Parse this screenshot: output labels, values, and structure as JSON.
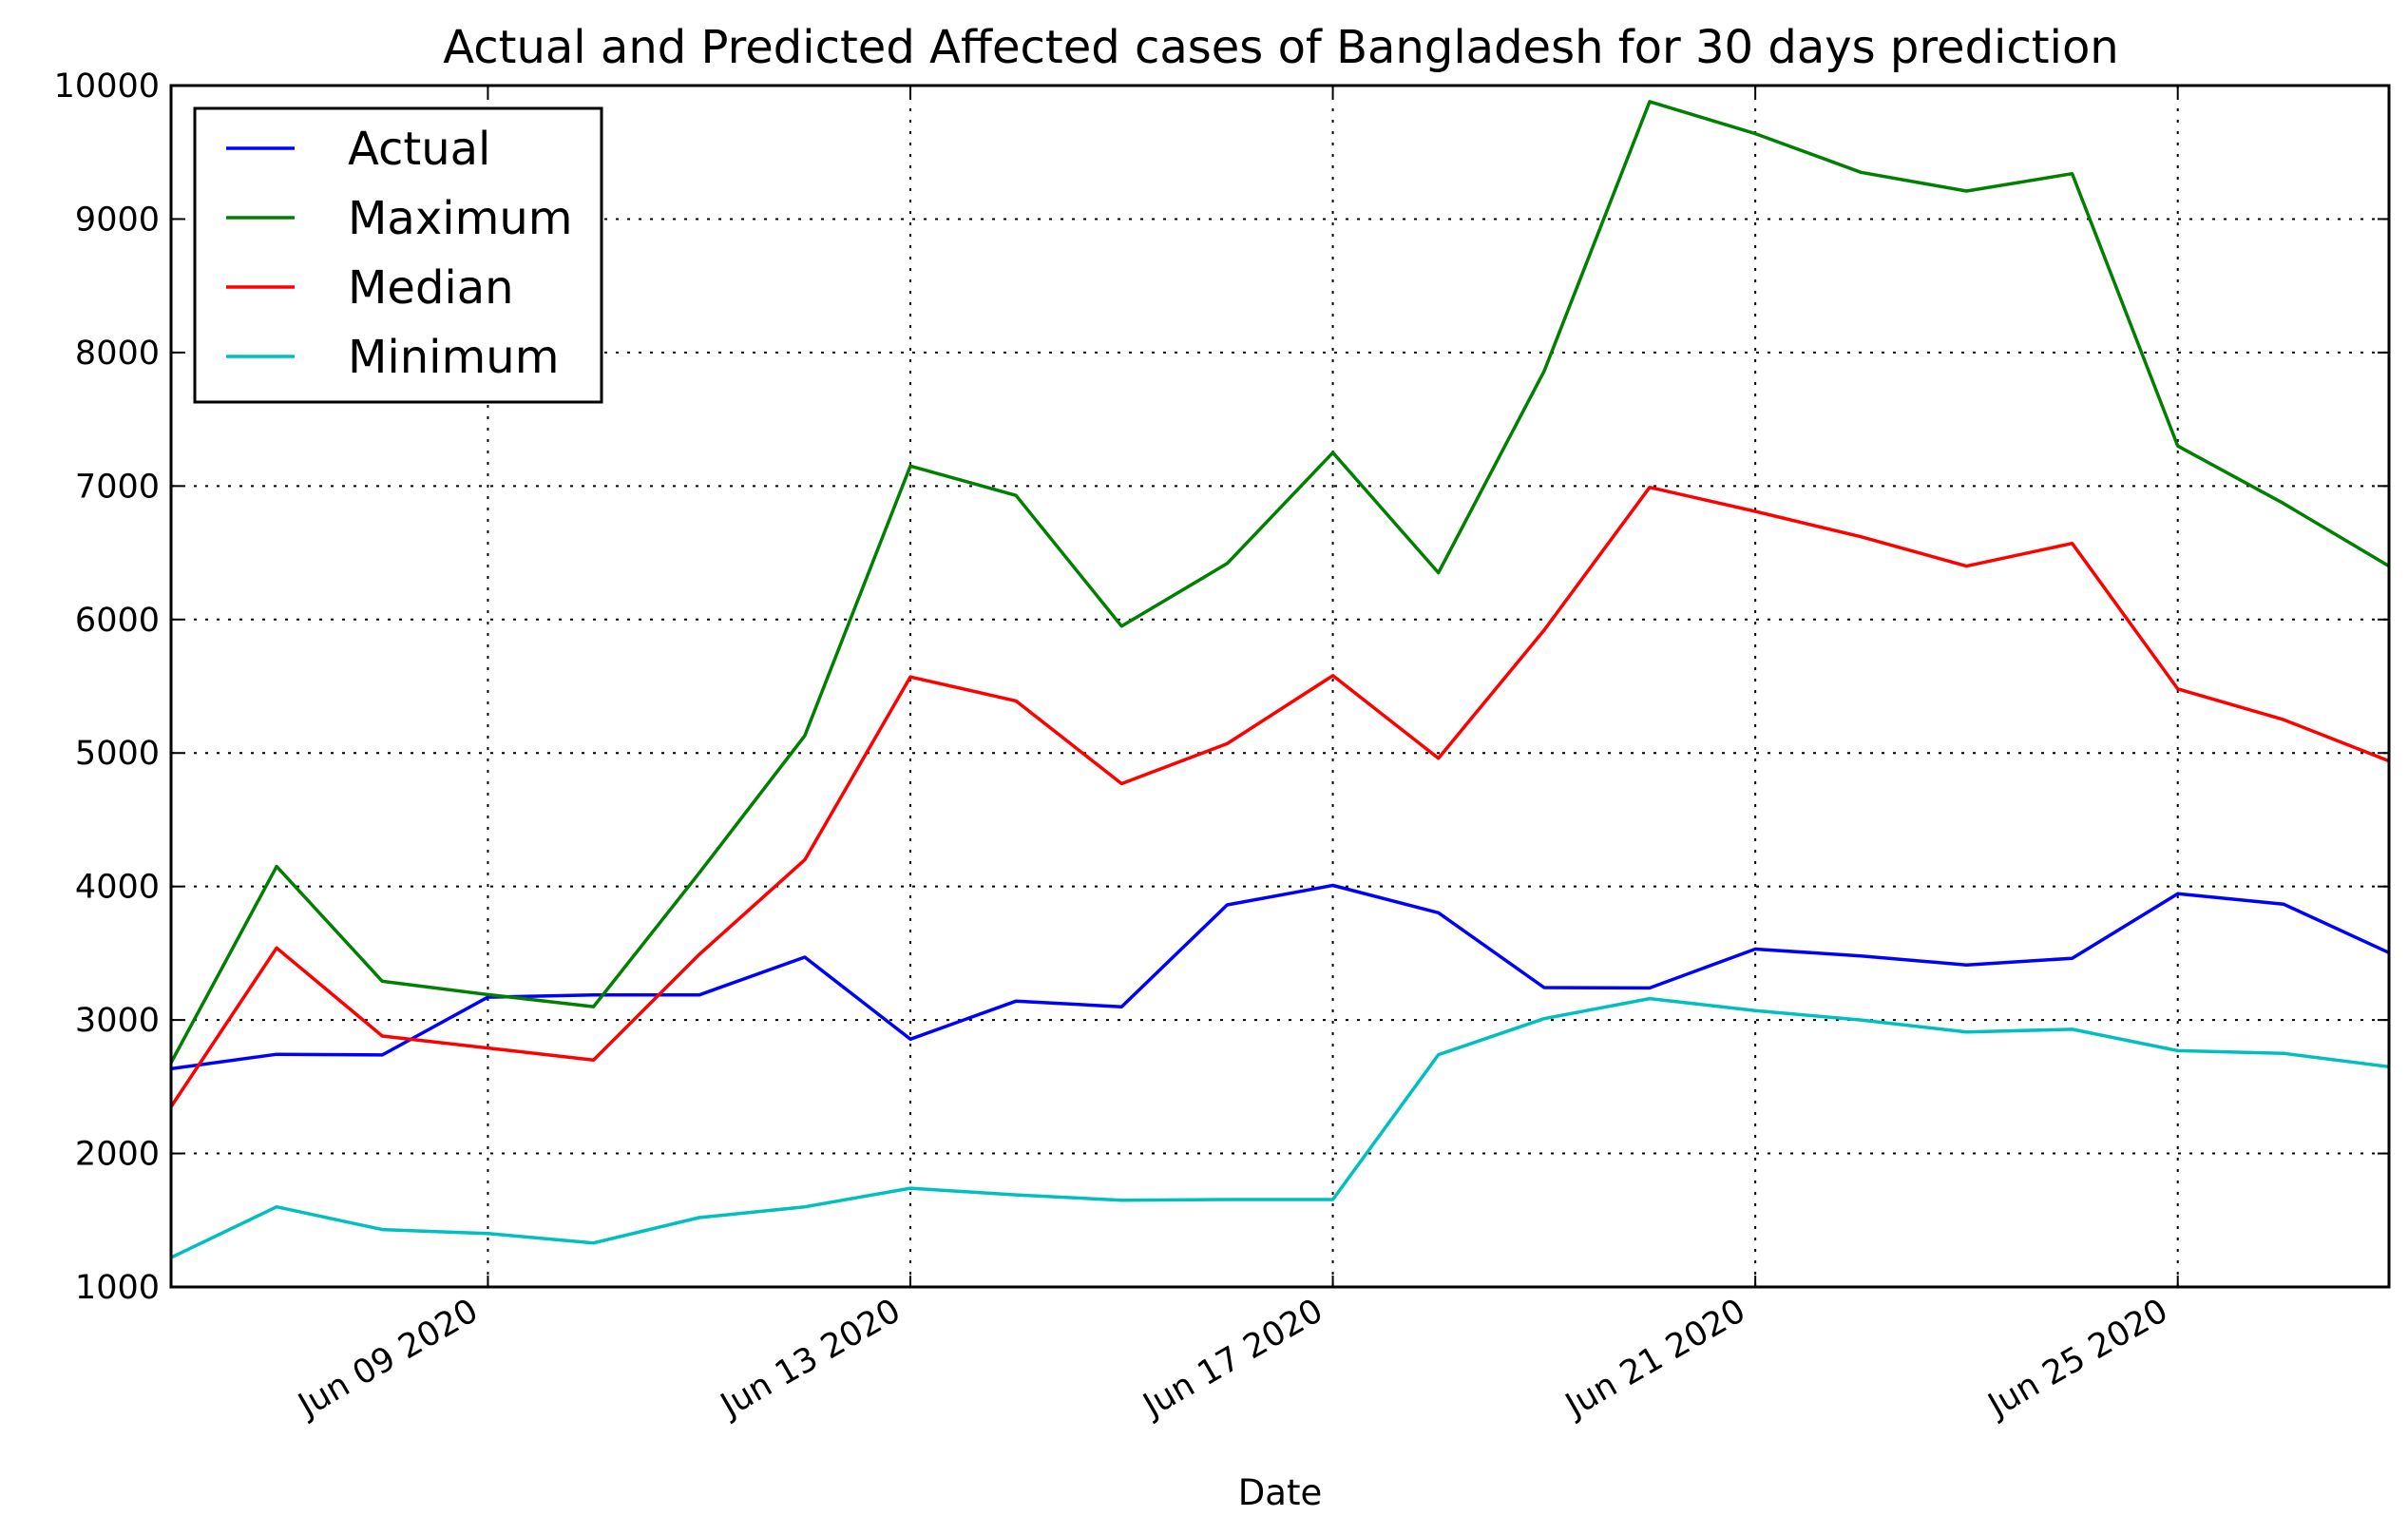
{
  "chart_data": {
    "type": "line",
    "title": "Actual and Predicted Affected cases of Bangladesh for 30 days prediction",
    "xlabel": "Date",
    "ylabel": "",
    "x": [
      "Jun 06 2020",
      "Jun 07 2020",
      "Jun 08 2020",
      "Jun 09 2020",
      "Jun 10 2020",
      "Jun 11 2020",
      "Jun 12 2020",
      "Jun 13 2020",
      "Jun 14 2020",
      "Jun 15 2020",
      "Jun 16 2020",
      "Jun 17 2020",
      "Jun 18 2020",
      "Jun 19 2020",
      "Jun 20 2020",
      "Jun 21 2020",
      "Jun 22 2020",
      "Jun 23 2020",
      "Jun 24 2020",
      "Jun 25 2020",
      "Jun 26 2020",
      "Jun 27 2020"
    ],
    "x_tick_labels": [
      "Jun 09 2020",
      "Jun 13 2020",
      "Jun 17 2020",
      "Jun 21 2020",
      "Jun 25 2020"
    ],
    "ylim": [
      1000,
      10000
    ],
    "y_ticks": [
      1000,
      2000,
      3000,
      4000,
      5000,
      6000,
      7000,
      8000,
      9000,
      10000
    ],
    "grid": true,
    "legend_position": "top-left",
    "series": [
      {
        "name": "Actual",
        "color": "#0000ff",
        "values": [
          2635,
          2743,
          2738,
          3171,
          3187,
          3187,
          3471,
          2856,
          3141,
          3099,
          3862,
          4008,
          3803,
          3243,
          3240,
          3531,
          3480,
          3412,
          3462,
          3946,
          3868,
          3504
        ]
      },
      {
        "name": "Maximum",
        "color": "#008000",
        "values": [
          2680,
          4150,
          3290,
          3190,
          3100,
          4100,
          5130,
          7150,
          6930,
          5950,
          6420,
          7250,
          6350,
          7860,
          9880,
          9640,
          9350,
          9210,
          9340,
          7300,
          6870,
          6400
        ]
      },
      {
        "name": "Median",
        "color": "#ff0000",
        "values": [
          2350,
          3540,
          2880,
          2790,
          2700,
          3490,
          4200,
          5570,
          5390,
          4770,
          5070,
          5580,
          4960,
          5920,
          6990,
          6810,
          6620,
          6400,
          6570,
          5480,
          5250,
          4940
        ]
      },
      {
        "name": "Minimum",
        "color": "#00bfbf",
        "values": [
          1220,
          1600,
          1430,
          1400,
          1330,
          1520,
          1600,
          1740,
          1690,
          1650,
          1655,
          1655,
          2740,
          3010,
          3160,
          3070,
          3000,
          2910,
          2930,
          2770,
          2750,
          2650
        ]
      }
    ]
  }
}
